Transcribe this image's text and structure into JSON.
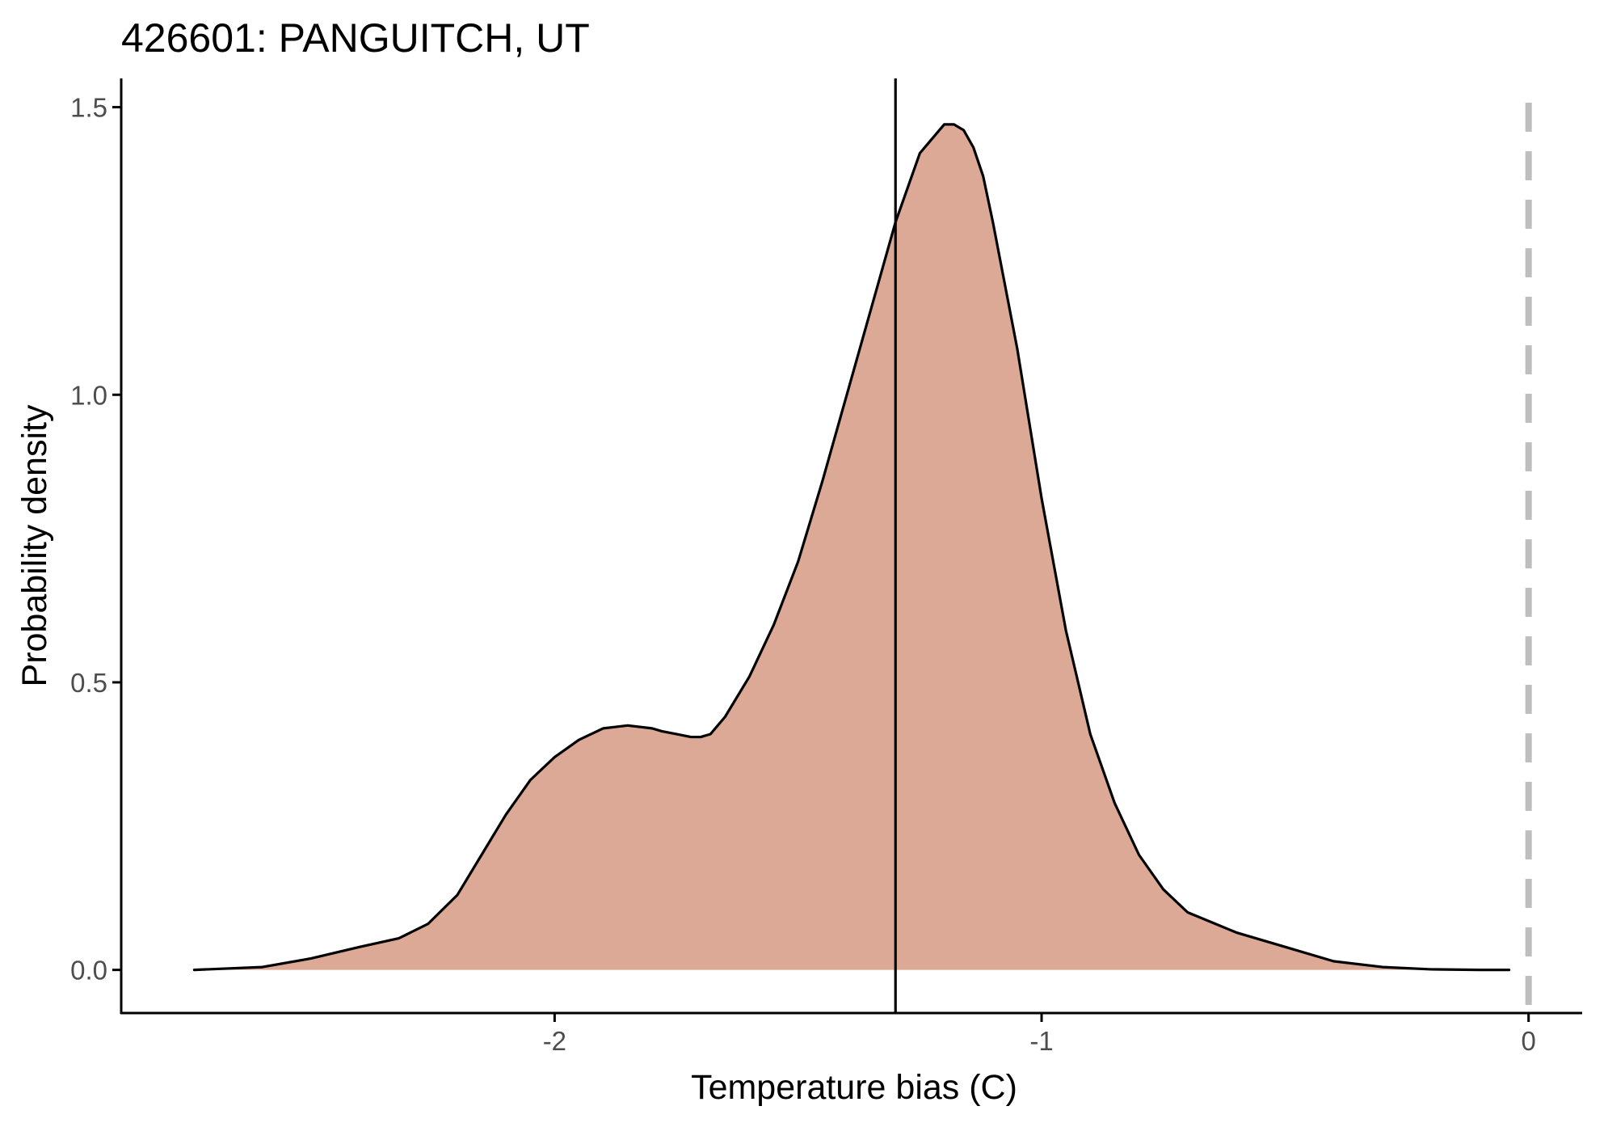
{
  "chart_data": {
    "type": "area",
    "title": "426601: PANGUITCH, UT",
    "xlabel": "Temperature bias (C)",
    "ylabel": "Probability density",
    "xlim": [
      -2.89,
      0.11
    ],
    "ylim": [
      -0.075,
      1.55
    ],
    "x_ticks": [
      {
        "value": -2,
        "label": "-2"
      },
      {
        "value": -1,
        "label": "-1"
      },
      {
        "value": 0,
        "label": "0"
      }
    ],
    "y_ticks": [
      {
        "value": 0.0,
        "label": "0.0"
      },
      {
        "value": 0.5,
        "label": "0.5"
      },
      {
        "value": 1.0,
        "label": "1.0"
      },
      {
        "value": 1.5,
        "label": "1.5"
      }
    ],
    "grid": false,
    "legend": "none",
    "series": [
      {
        "x": [
          -2.74,
          -2.6,
          -2.5,
          -2.4,
          -2.32,
          -2.26,
          -2.2,
          -2.15,
          -2.1,
          -2.05,
          -2.0,
          -1.95,
          -1.9,
          -1.85,
          -1.8,
          -1.78,
          -1.75,
          -1.72,
          -1.7,
          -1.68,
          -1.65,
          -1.6,
          -1.55,
          -1.5,
          -1.45,
          -1.4,
          -1.35,
          -1.3,
          -1.25,
          -1.2,
          -1.18,
          -1.16,
          -1.14,
          -1.12,
          -1.1,
          -1.05,
          -1.0,
          -0.95,
          -0.9,
          -0.85,
          -0.8,
          -0.75,
          -0.7,
          -0.6,
          -0.5,
          -0.4,
          -0.3,
          -0.2,
          -0.1,
          -0.04
        ],
        "y": [
          0.0,
          0.005,
          0.02,
          0.04,
          0.055,
          0.08,
          0.13,
          0.2,
          0.27,
          0.33,
          0.37,
          0.4,
          0.42,
          0.425,
          0.42,
          0.415,
          0.41,
          0.405,
          0.405,
          0.41,
          0.44,
          0.51,
          0.6,
          0.71,
          0.85,
          1.0,
          1.15,
          1.3,
          1.42,
          1.47,
          1.47,
          1.46,
          1.43,
          1.38,
          1.3,
          1.08,
          0.82,
          0.59,
          0.41,
          0.29,
          0.2,
          0.14,
          0.1,
          0.065,
          0.04,
          0.015,
          0.005,
          0.001,
          0.0,
          0.0
        ]
      }
    ],
    "reference_lines": [
      {
        "axis": "x",
        "value": -1.3,
        "style": "solid",
        "color": "#000000"
      },
      {
        "axis": "x",
        "value": 0,
        "style": "dashed",
        "color": "#bebebe"
      }
    ],
    "colors": {
      "fill": "#dba995",
      "outline": "#000000",
      "axis": "#000000",
      "tick_label": "#4d4d4d"
    }
  }
}
